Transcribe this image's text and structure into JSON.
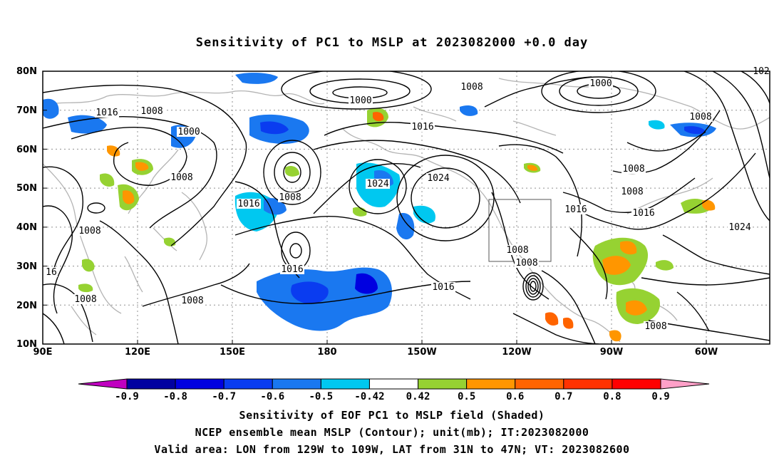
{
  "title": "Sensitivity of PC1 to MSLP at 2023082000 +0.0 day",
  "lat_labels": [
    "80N",
    "70N",
    "60N",
    "50N",
    "40N",
    "30N",
    "20N",
    "10N"
  ],
  "lon_labels": [
    "90E",
    "120E",
    "150E",
    "180",
    "150W",
    "120W",
    "90W",
    "60W"
  ],
  "contour_labels": [
    "1008",
    "1016",
    "1008",
    "1000",
    "1000",
    "1008",
    "1016",
    "1000",
    "1008",
    "1008",
    "1024",
    "1024",
    "1008",
    "1016",
    "1016",
    "1016",
    "1008",
    "1008",
    "1008",
    "1016",
    "1008",
    "1008",
    "1016",
    "1008",
    "1024",
    "1008",
    "1008",
    "16",
    "102"
  ],
  "colorbar": {
    "labels": [
      "-0.9",
      "-0.8",
      "-0.7",
      "-0.6",
      "-0.5",
      "-0.42",
      "0.42",
      "0.5",
      "0.6",
      "0.7",
      "0.8",
      "0.9"
    ],
    "colors": [
      "#c000c0",
      "#0000a0",
      "#0000e0",
      "#0a3cf0",
      "#1a78f0",
      "#00c8f0",
      "#ffffff",
      "#96d232",
      "#ff9600",
      "#ff6400",
      "#ff3200",
      "#ff0000",
      "#ffa0c8"
    ]
  },
  "captions": [
    "Sensitivity of EOF PC1 to MSLP field (Shaded)",
    "NCEP ensemble mean MSLP (Contour); unit(mb); IT:2023082000",
    "Valid area: LON from 129W to 109W, LAT from 31N to 47N; VT: 2023082600"
  ],
  "valid_box": {
    "lon_from": "129W",
    "lon_to": "109W",
    "lat_from": "31N",
    "lat_to": "47N"
  }
}
